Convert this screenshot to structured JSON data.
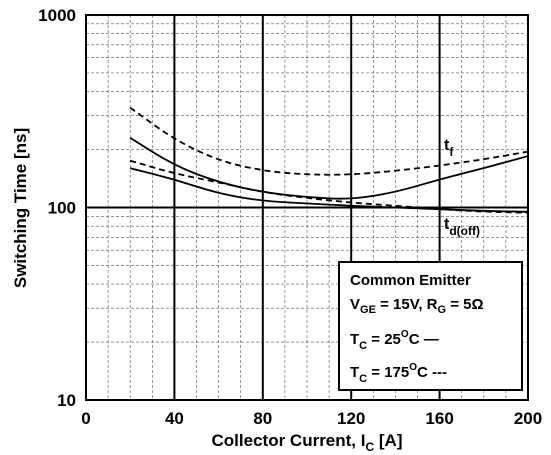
{
  "chart_data": {
    "type": "line",
    "xlabel": "Collector Current, I",
    "xlabel_sub": "C",
    "xlabel_unit": " [A]",
    "ylabel": "Switching Time [ns]",
    "xlim": [
      0,
      200
    ],
    "ylim": [
      10,
      1000
    ],
    "yscale": "log",
    "grid": true,
    "x_ticks": [
      "0",
      "40",
      "80",
      "120",
      "160",
      "200"
    ],
    "y_ticks": [
      "10",
      "100",
      "1000"
    ],
    "series": [
      {
        "name": "t_f",
        "condition": "T_C = 25°C",
        "style": "solid",
        "x": [
          20,
          40,
          60,
          80,
          100,
          120,
          140,
          160,
          180,
          200
        ],
        "y": [
          230,
          165,
          135,
          120,
          113,
          110,
          120,
          140,
          160,
          185
        ]
      },
      {
        "name": "t_f",
        "condition": "T_C = 175°C",
        "style": "dashed",
        "x": [
          20,
          40,
          60,
          80,
          100,
          120,
          140,
          160,
          180,
          200
        ],
        "y": [
          330,
          225,
          175,
          155,
          148,
          148,
          155,
          165,
          178,
          195
        ]
      },
      {
        "name": "t_d(off)",
        "condition": "T_C = 25°C",
        "style": "solid",
        "x": [
          20,
          40,
          60,
          80,
          100,
          120,
          140,
          160,
          180,
          200
        ],
        "y": [
          160,
          140,
          118,
          108,
          105,
          102,
          100,
          98,
          96,
          95
        ]
      },
      {
        "name": "t_d(off)",
        "condition": "T_C = 175°C",
        "style": "dashed",
        "x": [
          20,
          40,
          60,
          80,
          100,
          120,
          140,
          160,
          180,
          200
        ],
        "y": [
          175,
          150,
          135,
          120,
          112,
          106,
          102,
          98,
          95,
          94
        ]
      }
    ],
    "curve_labels": {
      "tf_main": "t",
      "tf_sub": "f",
      "tdoff_main": "t",
      "tdoff_sub": "d(off)"
    },
    "legend": {
      "placement": "bottom-right",
      "title": "Common Emitter",
      "cond_v": "V",
      "cond_v_sub": "GE",
      "cond_v_rest": " = 15V, R",
      "cond_r_sub": "G",
      "cond_r_rest": " = 5Ω",
      "t25_main": "T",
      "t25_sub": "C",
      "t25_rest1": " = 25",
      "t25_sup": "O",
      "t25_rest2": "C  —",
      "t175_main": "T",
      "t175_sub": "C",
      "t175_rest1": " = 175",
      "t175_sup": "O",
      "t175_rest2": "C ---"
    }
  }
}
